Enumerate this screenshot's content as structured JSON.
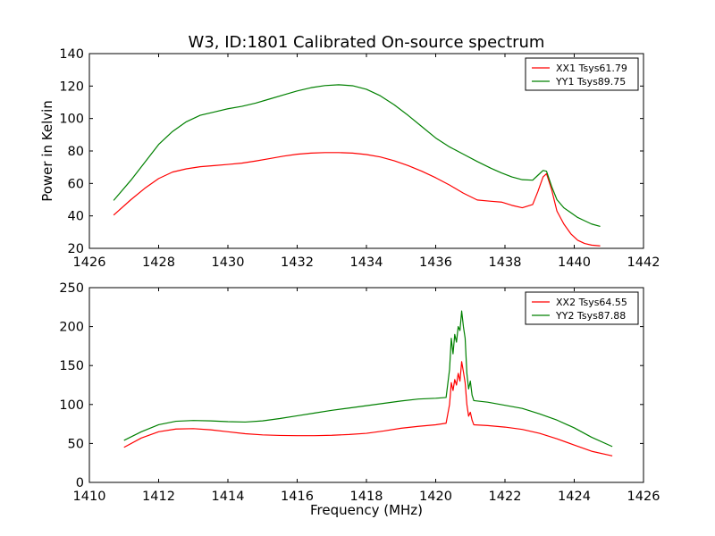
{
  "figure": {
    "title": "W3, ID:1801 Calibrated On-source spectrum"
  },
  "chart_data": [
    {
      "type": "line",
      "title": "W3, ID:1801 Calibrated On-source spectrum",
      "xlabel": "",
      "ylabel": "Power in Kelvin",
      "xlim": [
        1426,
        1442
      ],
      "ylim": [
        20,
        140
      ],
      "xticks": [
        "1426",
        "1428",
        "1430",
        "1432",
        "1434",
        "1436",
        "1438",
        "1440",
        "1442"
      ],
      "yticks": [
        "20",
        "40",
        "60",
        "80",
        "100",
        "120",
        "140"
      ],
      "legend_position": "top-right",
      "grid": false,
      "series": [
        {
          "name": "XX1 Tsys61.79",
          "color": "#ff0000",
          "x": [
            1426.7,
            1427.2,
            1427.6,
            1428.0,
            1428.4,
            1428.8,
            1429.2,
            1429.6,
            1430.0,
            1430.4,
            1430.8,
            1431.2,
            1431.6,
            1432.0,
            1432.4,
            1432.8,
            1433.2,
            1433.6,
            1434.0,
            1434.4,
            1434.8,
            1435.2,
            1435.6,
            1436.0,
            1436.4,
            1436.8,
            1437.2,
            1437.6,
            1437.9,
            1438.2,
            1438.5,
            1438.8,
            1438.95,
            1439.1,
            1439.2,
            1439.35,
            1439.5,
            1439.7,
            1439.9,
            1440.1,
            1440.3,
            1440.5,
            1440.75
          ],
          "y": [
            40.5,
            50,
            57,
            63,
            67,
            69,
            70.3,
            71,
            71.7,
            72.5,
            73.8,
            75.3,
            76.8,
            78,
            78.7,
            79,
            79,
            78.7,
            77.8,
            76.3,
            74,
            71,
            67.5,
            63.5,
            59,
            54,
            49.8,
            49,
            48.5,
            46.5,
            45,
            47,
            55,
            64,
            66,
            56,
            43,
            35,
            29,
            25,
            23,
            22,
            21.5
          ]
        },
        {
          "name": "YY1 Tsys89.75",
          "color": "#008000",
          "x": [
            1426.7,
            1427.2,
            1427.6,
            1428.0,
            1428.4,
            1428.8,
            1429.2,
            1429.6,
            1430.0,
            1430.4,
            1430.8,
            1431.2,
            1431.6,
            1432.0,
            1432.4,
            1432.8,
            1433.2,
            1433.6,
            1434.0,
            1434.4,
            1434.8,
            1435.2,
            1435.6,
            1436.0,
            1436.4,
            1436.8,
            1437.2,
            1437.6,
            1437.9,
            1438.2,
            1438.5,
            1438.8,
            1438.95,
            1439.1,
            1439.2,
            1439.35,
            1439.5,
            1439.7,
            1439.9,
            1440.1,
            1440.3,
            1440.5,
            1440.75
          ],
          "y": [
            49.5,
            62,
            73,
            84,
            92,
            98,
            102,
            104,
            106,
            107.5,
            109.5,
            112,
            114.5,
            117,
            119,
            120.3,
            120.8,
            120.2,
            118,
            114,
            108.5,
            102,
            95,
            88,
            82.5,
            78,
            73.5,
            69.3,
            66.5,
            64,
            62.3,
            62,
            65,
            68,
            67.5,
            58,
            50,
            45,
            42,
            39,
            37,
            35,
            33.5
          ]
        }
      ]
    },
    {
      "type": "line",
      "title": "",
      "xlabel": "Frequency (MHz)",
      "ylabel": "",
      "xlim": [
        1410,
        1426
      ],
      "ylim": [
        0,
        250
      ],
      "xticks": [
        "1410",
        "1412",
        "1414",
        "1416",
        "1418",
        "1420",
        "1422",
        "1424",
        "1426"
      ],
      "yticks": [
        "0",
        "50",
        "100",
        "150",
        "200",
        "250"
      ],
      "legend_position": "top-right",
      "grid": false,
      "series": [
        {
          "name": "XX2 Tsys64.55",
          "color": "#ff0000",
          "x": [
            1411.0,
            1411.5,
            1412.0,
            1412.5,
            1413.0,
            1413.5,
            1414.0,
            1414.5,
            1415.0,
            1415.5,
            1416.0,
            1416.5,
            1417.0,
            1417.5,
            1418.0,
            1418.5,
            1419.0,
            1419.5,
            1420.0,
            1420.3,
            1420.4,
            1420.45,
            1420.5,
            1420.55,
            1420.6,
            1420.65,
            1420.7,
            1420.75,
            1420.8,
            1420.85,
            1420.9,
            1420.95,
            1421.0,
            1421.05,
            1421.1,
            1421.5,
            1422.0,
            1422.5,
            1423.0,
            1423.5,
            1424.0,
            1424.5,
            1425.1
          ],
          "y": [
            45,
            57,
            65,
            68.5,
            69,
            67.5,
            65,
            62.5,
            61,
            60.3,
            60,
            60,
            60.5,
            61.5,
            63,
            66,
            69.5,
            72,
            74,
            76,
            100,
            128,
            118,
            132,
            125,
            140,
            130,
            155,
            142,
            128,
            100,
            85,
            90,
            80,
            74,
            73,
            71,
            68,
            63,
            56,
            48,
            40,
            34
          ]
        },
        {
          "name": "YY2 Tsys87.88",
          "color": "#008000",
          "x": [
            1411.0,
            1411.5,
            1412.0,
            1412.5,
            1413.0,
            1413.5,
            1414.0,
            1414.5,
            1415.0,
            1415.5,
            1416.0,
            1416.5,
            1417.0,
            1417.5,
            1418.0,
            1418.5,
            1419.0,
            1419.5,
            1420.0,
            1420.3,
            1420.4,
            1420.45,
            1420.5,
            1420.55,
            1420.6,
            1420.65,
            1420.7,
            1420.75,
            1420.8,
            1420.85,
            1420.9,
            1420.95,
            1421.0,
            1421.05,
            1421.1,
            1421.5,
            1422.0,
            1422.5,
            1423.0,
            1423.5,
            1424.0,
            1424.5,
            1425.1
          ],
          "y": [
            54,
            65,
            74,
            78.5,
            79.5,
            79,
            78,
            77.5,
            79,
            82,
            85.5,
            89,
            92.5,
            95.5,
            98.5,
            101.5,
            104.5,
            107,
            108,
            109,
            145,
            185,
            165,
            190,
            180,
            200,
            195,
            220,
            200,
            185,
            140,
            120,
            130,
            112,
            105,
            103,
            99,
            95,
            88,
            80,
            70,
            58,
            46
          ]
        }
      ]
    }
  ]
}
